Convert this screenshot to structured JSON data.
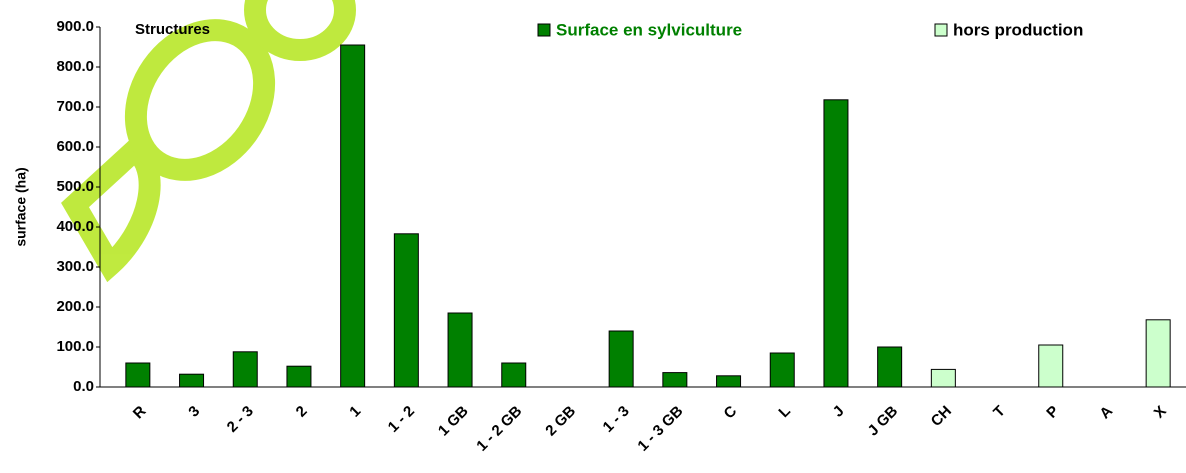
{
  "chart_data": {
    "type": "bar",
    "title": "Structures",
    "y_label": "surface (ha)",
    "categories": [
      "R",
      "3",
      "2 - 3",
      "2",
      "1",
      "1 - 2",
      "1 GB",
      "1 - 2 GB",
      "2 GB",
      "1 - 3",
      "1 - 3 GB",
      "C",
      "L",
      "J",
      "J GB",
      "CH",
      "T",
      "P",
      "A",
      "X"
    ],
    "series": [
      {
        "name": "Surface en sylviculture",
        "color": "#008000",
        "values": [
          60,
          32,
          88,
          52,
          855,
          383,
          185,
          60,
          0,
          140,
          36,
          28,
          85,
          718,
          100,
          null,
          null,
          null,
          null,
          null
        ]
      },
      {
        "name": "hors production",
        "color": "#ccffcc",
        "values": [
          null,
          null,
          null,
          null,
          null,
          null,
          null,
          null,
          null,
          null,
          null,
          null,
          null,
          null,
          null,
          44,
          0,
          105,
          0,
          168
        ]
      }
    ],
    "ylim": [
      0,
      900
    ],
    "yticks": [
      {
        "value": 0,
        "label": "0.0"
      },
      {
        "value": 100,
        "label": "100.0"
      },
      {
        "value": 200,
        "label": "200.0"
      },
      {
        "value": 300,
        "label": "300.0"
      },
      {
        "value": 400,
        "label": "400.0"
      },
      {
        "value": 500,
        "label": "500.0"
      },
      {
        "value": 600,
        "label": "600.0"
      },
      {
        "value": 700,
        "label": "700.0"
      },
      {
        "value": 800,
        "label": "800.0"
      },
      {
        "value": 900,
        "label": "900.0"
      }
    ],
    "grid": false
  }
}
